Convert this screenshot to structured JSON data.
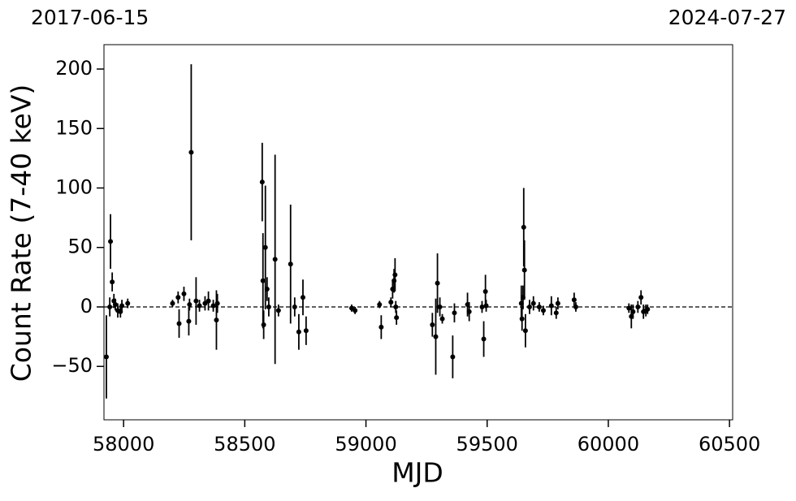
{
  "chart_data": {
    "type": "scatter",
    "x_label": "MJD",
    "y_label": "Count Rate (7-40 keV)",
    "top_left_label": "2017-06-15",
    "top_right_label": "2024-07-27",
    "xlim": [
      57919,
      60513
    ],
    "ylim": [
      -94.9,
      220.5
    ],
    "xticks": [
      58000,
      58500,
      59000,
      59500,
      60000,
      60500
    ],
    "yticks": [
      {
        "value": -50,
        "label": "−50"
      },
      0,
      50,
      100,
      150,
      200
    ],
    "reference_line": 0,
    "series": [
      {
        "color": "#000000",
        "x": [
          57929,
          57943,
          57946,
          57953,
          57960,
          57966,
          57976,
          57987,
          57993,
          58017,
          58202,
          58225,
          58229,
          58249,
          58269,
          58272,
          58279,
          58299,
          58313,
          58336,
          58350,
          58370,
          58383,
          58387,
          58572,
          58575,
          58578,
          58585,
          58592,
          58599,
          58625,
          58639,
          58689,
          58706,
          58723,
          58740,
          58753,
          58941,
          58955,
          59056,
          59063,
          59103,
          59110,
          59116,
          59120,
          59123,
          59126,
          59274,
          59288,
          59295,
          59305,
          59315,
          59358,
          59365,
          59419,
          59426,
          59479,
          59486,
          59493,
          59496,
          59641,
          59644,
          59648,
          59651,
          59654,
          59658,
          59675,
          59691,
          59715,
          59732,
          59765,
          59785,
          59792,
          59859,
          59866,
          60085,
          60095,
          60102,
          60122,
          60135,
          60145,
          60155,
          60162
        ],
        "values": [
          -42,
          0,
          55,
          21,
          5,
          2,
          -3,
          -4,
          1,
          3,
          3,
          8,
          -14,
          11,
          -12,
          2,
          130,
          5,
          1,
          3,
          5,
          1,
          -11,
          3,
          105,
          22,
          -15,
          50,
          15,
          0,
          40,
          -3,
          36,
          0,
          -21,
          8,
          -20,
          -1,
          -3,
          2,
          -17,
          4,
          15,
          22,
          27,
          0,
          -9,
          -15,
          -25,
          20,
          0,
          -10,
          -42,
          -5,
          2,
          -4,
          0,
          -27,
          13,
          1,
          3,
          -10,
          8,
          67,
          31,
          -20,
          0,
          3,
          0,
          -3,
          1,
          -5,
          3,
          6,
          0,
          -1,
          -8,
          -4,
          0,
          8,
          -4,
          -3,
          -2
        ],
        "errors": [
          35,
          8,
          23,
          8,
          6,
          5,
          6,
          5,
          5,
          4,
          3,
          5,
          12,
          6,
          12,
          5,
          74,
          20,
          5,
          6,
          8,
          5,
          25,
          8,
          33,
          40,
          12,
          52,
          10,
          8,
          88,
          5,
          50,
          8,
          15,
          15,
          12,
          3,
          3,
          3,
          10,
          4,
          8,
          10,
          14,
          5,
          6,
          10,
          32,
          25,
          8,
          4,
          18,
          8,
          10,
          8,
          5,
          15,
          14,
          5,
          15,
          10,
          10,
          33,
          25,
          14,
          6,
          6,
          4,
          4,
          8,
          5,
          5,
          6,
          4,
          4,
          10,
          6,
          5,
          6,
          6,
          5,
          4
        ]
      }
    ]
  }
}
